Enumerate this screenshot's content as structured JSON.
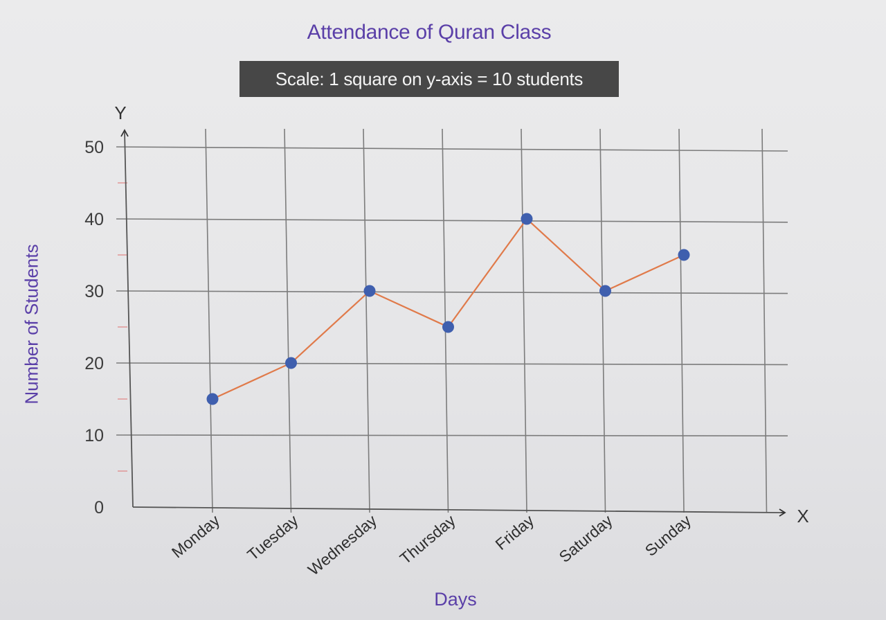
{
  "chart_data": {
    "type": "line",
    "title": "Attendance of Quran Class",
    "subtitle": "Scale: 1 square on y-axis = 10 students",
    "xlabel": "Days",
    "ylabel": "Number of Students",
    "x_axis_letter": "X",
    "y_axis_letter": "Y",
    "categories": [
      "Monday",
      "Tuesday",
      "Wednesday",
      "Thursday",
      "Friday",
      "Saturday",
      "Sunday"
    ],
    "values": [
      15,
      20,
      30,
      25,
      40,
      30,
      35
    ],
    "yticks": [
      "0",
      "10",
      "20",
      "30",
      "40",
      "50"
    ],
    "ylim": [
      0,
      50
    ],
    "grid": true,
    "colors": {
      "line": "#e07a4a",
      "marker": "#3f5fae",
      "title": "#5a3fa8"
    }
  }
}
